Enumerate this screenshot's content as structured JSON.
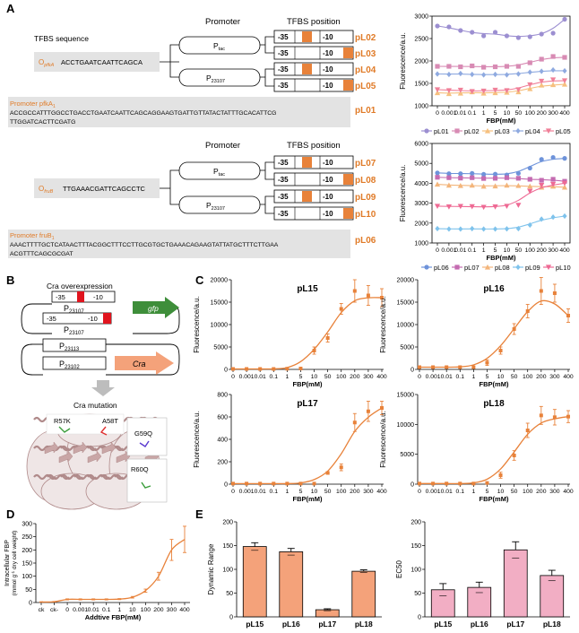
{
  "panels": {
    "A": "A",
    "B": "B",
    "C": "C",
    "D": "D",
    "E": "E"
  },
  "colors": {
    "orange": "#E8823A",
    "orange_text": "#E07B28",
    "bar_orange": "#F4A27A",
    "bar_pink": "#F2AEC4",
    "grey_box": "#E3E3E3",
    "red": "#E0141E",
    "green": "#3E8E3A",
    "protein": "#B08A8A",
    "c01": "#9C8FD1",
    "c02": "#D88BB4",
    "c03": "#F6C07F",
    "c04": "#8FAAE0",
    "c05": "#F07F98",
    "c06": "#6E93DA",
    "c07": "#C46BB1",
    "c08": "#F3B57B",
    "c09": "#7FC3EC",
    "c10": "#EE6A94"
  },
  "panelA": {
    "top": {
      "tfbs_sequence_label": "TFBS sequence",
      "promoter_header": "Promoter",
      "tfbs_position_header": "TFBS position",
      "operator_label": "O",
      "operator_sub": "pfkA",
      "operator_seq": "ACCTGAATCAATTCAGCA",
      "promoters": [
        {
          "name": "P",
          "sub": "tac"
        },
        {
          "name": "P",
          "sub": "23107"
        }
      ],
      "minus35": "-35",
      "minus10": "-10",
      "constructs": [
        "pL02",
        "pL03",
        "pL04",
        "pL05"
      ],
      "native_label": "Promoter pfkA",
      "native_sub": "1",
      "native_seq_line1": "ACCGCCATTTGGCCTGACCTGAATCAATTCAGCAGGAAGTGATTGTTATACTATTTGCACATTCG",
      "native_seq_line2": "TTGGATCACTTCGATG",
      "native_id": "pL01"
    },
    "bottom": {
      "promoter_header": "Promoter",
      "tfbs_position_header": "TFBS position",
      "operator_label": "O",
      "operator_sub": "fruB",
      "operator_seq": "TTGAAACGATTCAGCCTC",
      "promoters": [
        {
          "name": "P",
          "sub": "tac"
        },
        {
          "name": "P",
          "sub": "23107"
        }
      ],
      "minus35": "-35",
      "minus10": "-10",
      "constructs": [
        "pL07",
        "pL08",
        "pL09",
        "pL10"
      ],
      "native_label": "Promoter fruB",
      "native_sub": "1",
      "native_seq_line1": "AAACTTTTGCTCATAACTTTACGGCTTTCCTTGCGTGCTGAAACAGAAGTATTATGCTTTCTTGAA",
      "native_seq_line2": "ACGTTTCAGCGCGAT",
      "native_id": "pL06"
    }
  },
  "panelB": {
    "overexpression_title": "Cra overexpression",
    "minus35": "-35",
    "minus10": "-10",
    "p23107": "P",
    "p23107_sub": "23107",
    "gfp": "gfp",
    "p23113": "P",
    "p23113_sub": "23113",
    "p23102": "P",
    "p23102_sub": "23102",
    "cra": "Cra",
    "mutation_title": "Cra mutation",
    "mutations": [
      "R57K",
      "A58T",
      "G59Q",
      "R60Q"
    ]
  },
  "chart_data": [
    {
      "id": "A-top",
      "type": "scatter",
      "ylabel": "Fluorescence/a.u.",
      "xlabel": "FBP(mM)",
      "x_tick_labels": [
        "0",
        "0.001",
        "0.01",
        "0.1",
        "1",
        "5",
        "10",
        "50",
        "100",
        "200",
        "300",
        "400"
      ],
      "x": [
        0,
        0.001,
        0.01,
        0.1,
        1,
        5,
        10,
        50,
        100,
        200,
        300,
        400
      ],
      "ylim": [
        1000,
        3000
      ],
      "y_ticks": [
        1000,
        1500,
        2000,
        2500,
        3000
      ],
      "legend_position": "bottom",
      "series": [
        {
          "name": "pL01",
          "color": "#9C8FD1",
          "marker": "circle",
          "values": [
            2780,
            2760,
            2680,
            2640,
            2560,
            2640,
            2560,
            2520,
            2540,
            2600,
            2620,
            2930
          ]
        },
        {
          "name": "pL02",
          "color": "#D88BB4",
          "marker": "square",
          "values": [
            1880,
            1880,
            1870,
            1890,
            1860,
            1870,
            1880,
            1880,
            1960,
            2040,
            2100,
            2080
          ]
        },
        {
          "name": "pL03",
          "color": "#F6C07F",
          "marker": "triangle",
          "values": [
            1290,
            1270,
            1280,
            1310,
            1280,
            1290,
            1300,
            1310,
            1380,
            1460,
            1470,
            1480
          ]
        },
        {
          "name": "pL04",
          "color": "#8FAAE0",
          "marker": "diamond",
          "values": [
            1710,
            1700,
            1720,
            1700,
            1690,
            1700,
            1690,
            1710,
            1750,
            1770,
            1800,
            1780
          ]
        },
        {
          "name": "pL05",
          "color": "#F07F98",
          "marker": "triangle-down",
          "values": [
            1360,
            1340,
            1350,
            1320,
            1330,
            1350,
            1340,
            1360,
            1470,
            1550,
            1580,
            1560
          ]
        }
      ]
    },
    {
      "id": "A-bottom",
      "type": "scatter",
      "ylabel": "Fluorescence/a.u.",
      "xlabel": "FBP(mM)",
      "x_tick_labels": [
        "0",
        "0.001",
        "0.01",
        "0.1",
        "1",
        "5",
        "10",
        "50",
        "100",
        "200",
        "300",
        "400"
      ],
      "x": [
        0,
        0.001,
        0.01,
        0.1,
        1,
        5,
        10,
        50,
        100,
        200,
        300,
        400
      ],
      "ylim": [
        1000,
        6000
      ],
      "y_ticks": [
        1000,
        2000,
        3000,
        4000,
        5000,
        6000
      ],
      "legend_position": "bottom",
      "series": [
        {
          "name": "pL06",
          "color": "#6E93DA",
          "marker": "circle",
          "values": [
            4520,
            4480,
            4480,
            4500,
            4450,
            4460,
            4420,
            4500,
            4760,
            5200,
            5300,
            5250
          ]
        },
        {
          "name": "pL07",
          "color": "#C46BB1",
          "marker": "square",
          "values": [
            4300,
            4280,
            4260,
            4280,
            4240,
            4250,
            4280,
            4250,
            4200,
            4150,
            4200,
            4100
          ]
        },
        {
          "name": "pL08",
          "color": "#F3B57B",
          "marker": "triangle",
          "values": [
            3950,
            3900,
            3880,
            3900,
            3850,
            3860,
            3900,
            3880,
            3850,
            3800,
            3850,
            3800
          ]
        },
        {
          "name": "pL09",
          "color": "#7FC3EC",
          "marker": "diamond",
          "values": [
            1720,
            1700,
            1700,
            1720,
            1700,
            1700,
            1710,
            1720,
            1900,
            2200,
            2300,
            2350
          ]
        },
        {
          "name": "pL10",
          "color": "#EE6A94",
          "marker": "triangle-down",
          "values": [
            2850,
            2820,
            2840,
            2830,
            2800,
            2820,
            2850,
            2900,
            3600,
            3900,
            3950,
            4000
          ]
        }
      ]
    },
    {
      "id": "C-pL15",
      "type": "line",
      "title": "pL15",
      "ylabel": "Fluorescence/a.u.",
      "xlabel": "FBP(mM)",
      "x_tick_labels": [
        "0",
        "0.001",
        "0.01",
        "0.1",
        "1",
        "5",
        "10",
        "50",
        "100",
        "200",
        "300",
        "400"
      ],
      "ylim": [
        0,
        20000
      ],
      "y_ticks": [
        0,
        5000,
        10000,
        15000,
        20000
      ],
      "values": [
        100,
        100,
        100,
        100,
        150,
        200,
        4200,
        7000,
        13500,
        17500,
        16500,
        16000
      ],
      "errors": [
        0,
        0,
        0,
        0,
        0,
        0,
        800,
        900,
        1200,
        2500,
        2200,
        2000
      ]
    },
    {
      "id": "C-pL16",
      "type": "line",
      "title": "pL16",
      "ylabel": "Fluorescence/a.u.",
      "xlabel": "FBP(mM)",
      "x_tick_labels": [
        "0",
        "0.001",
        "0.01",
        "0.1",
        "1",
        "5",
        "10",
        "50",
        "100",
        "200",
        "300",
        "400"
      ],
      "ylim": [
        0,
        20000
      ],
      "y_ticks": [
        0,
        5000,
        10000,
        15000,
        20000
      ],
      "values": [
        500,
        500,
        500,
        500,
        500,
        1500,
        4200,
        9000,
        13000,
        17500,
        17000,
        12000
      ],
      "errors": [
        0,
        0,
        0,
        0,
        0,
        600,
        800,
        1200,
        1500,
        3000,
        2000,
        1500
      ]
    },
    {
      "id": "C-pL17",
      "type": "line",
      "title": "pL17",
      "ylabel": "Fluorescence/a.u.",
      "xlabel": "FBP(mM)",
      "x_tick_labels": [
        "0",
        "0.001",
        "0.01",
        "0.1",
        "1",
        "5",
        "10",
        "50",
        "100",
        "200",
        "300",
        "400"
      ],
      "ylim": [
        0,
        800
      ],
      "y_ticks": [
        0,
        200,
        400,
        600,
        800
      ],
      "values": [
        5,
        5,
        5,
        5,
        5,
        5,
        5,
        100,
        150,
        550,
        650,
        680
      ],
      "errors": [
        0,
        0,
        0,
        0,
        0,
        0,
        0,
        10,
        30,
        80,
        90,
        60
      ]
    },
    {
      "id": "C-pL18",
      "type": "line",
      "title": "pL18",
      "ylabel": "Fluorescence/a.u.",
      "xlabel": "FBP(mM)",
      "x_tick_labels": [
        "0",
        "0.001",
        "0.01",
        "0.1",
        "1",
        "5",
        "10",
        "50",
        "100",
        "200",
        "300",
        "400"
      ],
      "ylim": [
        0,
        15000
      ],
      "y_ticks": [
        0,
        5000,
        10000,
        15000
      ],
      "values": [
        100,
        100,
        100,
        100,
        100,
        200,
        1500,
        4800,
        9000,
        11500,
        11200,
        11300
      ],
      "errors": [
        0,
        0,
        0,
        0,
        0,
        0,
        500,
        800,
        1200,
        1500,
        1300,
        1000
      ]
    },
    {
      "id": "D",
      "type": "line",
      "ylabel_line1": "Intracellular FBP",
      "ylabel_line2": "(mmol g",
      "ylabel_sup": "-1",
      "ylabel_line2b": " dry cell weight)",
      "xlabel": "Addtive FBP(mM)",
      "x_tick_labels": [
        "ck",
        "ck-",
        "0",
        "0.001",
        "0.01",
        "0.1",
        "1",
        "10",
        "100",
        "200",
        "300",
        "400"
      ],
      "ylim": [
        0,
        300
      ],
      "y_ticks": [
        0,
        50,
        100,
        150,
        200,
        250,
        300
      ],
      "values": [
        2,
        3,
        12,
        12,
        12,
        12,
        13,
        20,
        45,
        100,
        200,
        240
      ],
      "errors": [
        1,
        1,
        2,
        2,
        2,
        2,
        2,
        3,
        6,
        15,
        40,
        50
      ]
    },
    {
      "id": "E-dynamic",
      "type": "bar",
      "ylabel": "Dynamic Range",
      "categories": [
        "pL15",
        "pL16",
        "pL17",
        "pL18"
      ],
      "values": [
        148,
        137,
        15,
        96
      ],
      "errors": [
        8,
        7,
        2,
        3
      ],
      "ylim": [
        0,
        200
      ],
      "y_ticks": [
        0,
        50,
        100,
        150,
        200
      ]
    },
    {
      "id": "E-ec50",
      "type": "bar",
      "ylabel": "EC50",
      "categories": [
        "pL15",
        "pL16",
        "pL17",
        "pL18"
      ],
      "values": [
        57,
        62,
        141,
        87
      ],
      "errors": [
        13,
        11,
        17,
        11
      ],
      "ylim": [
        0,
        200
      ],
      "y_ticks": [
        0,
        50,
        100,
        150,
        200
      ]
    }
  ]
}
